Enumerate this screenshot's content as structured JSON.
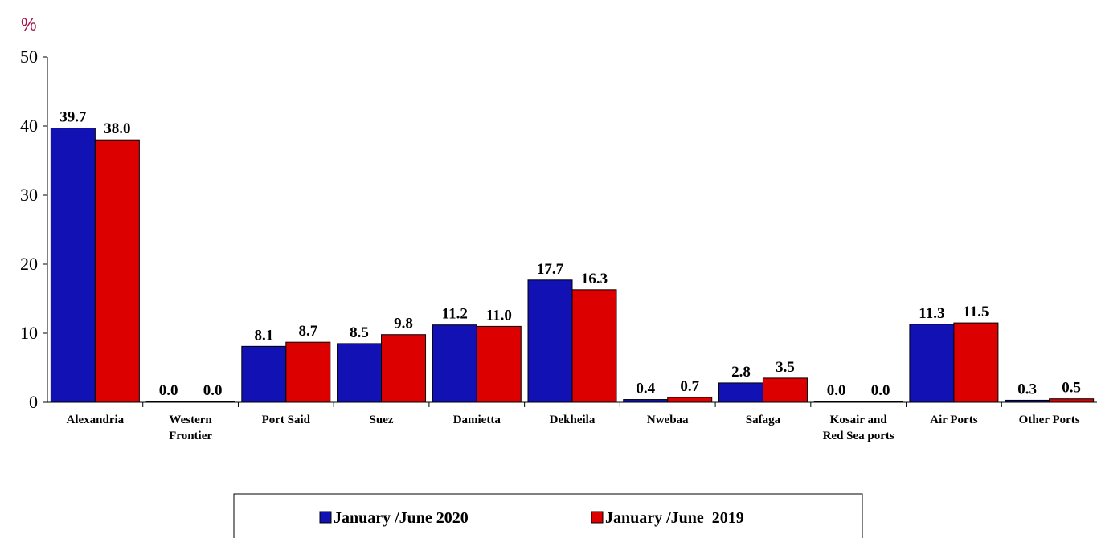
{
  "chart_data": {
    "type": "bar",
    "unit_label": "%",
    "ylim": [
      0,
      50
    ],
    "yticks": [
      0,
      10,
      20,
      30,
      40,
      50
    ],
    "grid": false,
    "legend_position": "bottom",
    "categories": [
      [
        "Alexandria"
      ],
      [
        "Western",
        "Frontier"
      ],
      [
        "Port Said"
      ],
      [
        "Suez"
      ],
      [
        "Damietta"
      ],
      [
        "Dekheila"
      ],
      [
        "Nwebaa"
      ],
      [
        "Safaga"
      ],
      [
        "Kosair and",
        "Red Sea ports"
      ],
      [
        "Air Ports"
      ],
      [
        "Other Ports"
      ]
    ],
    "series": [
      {
        "name": "January /June 2020",
        "color": "#1212b4",
        "values": [
          39.7,
          0.0,
          8.1,
          8.5,
          11.2,
          17.7,
          0.4,
          2.8,
          0.0,
          11.3,
          0.3
        ],
        "labels": [
          "39.7",
          "0.0",
          "8.1",
          "8.5",
          "11.2",
          "17.7",
          "0.4",
          "2.8",
          "0.0",
          "11.3",
          "0.3"
        ]
      },
      {
        "name": "January /June  2019",
        "color": "#dc0000",
        "values": [
          38.0,
          0.0,
          8.7,
          9.8,
          11.0,
          16.3,
          0.7,
          3.5,
          0.0,
          11.5,
          0.5
        ],
        "labels": [
          "38.0",
          "0.0",
          "8.7",
          "9.8",
          "11.0",
          "16.3",
          "0.7",
          "3.5",
          "0.0",
          "11.5",
          "0.5"
        ]
      }
    ]
  }
}
